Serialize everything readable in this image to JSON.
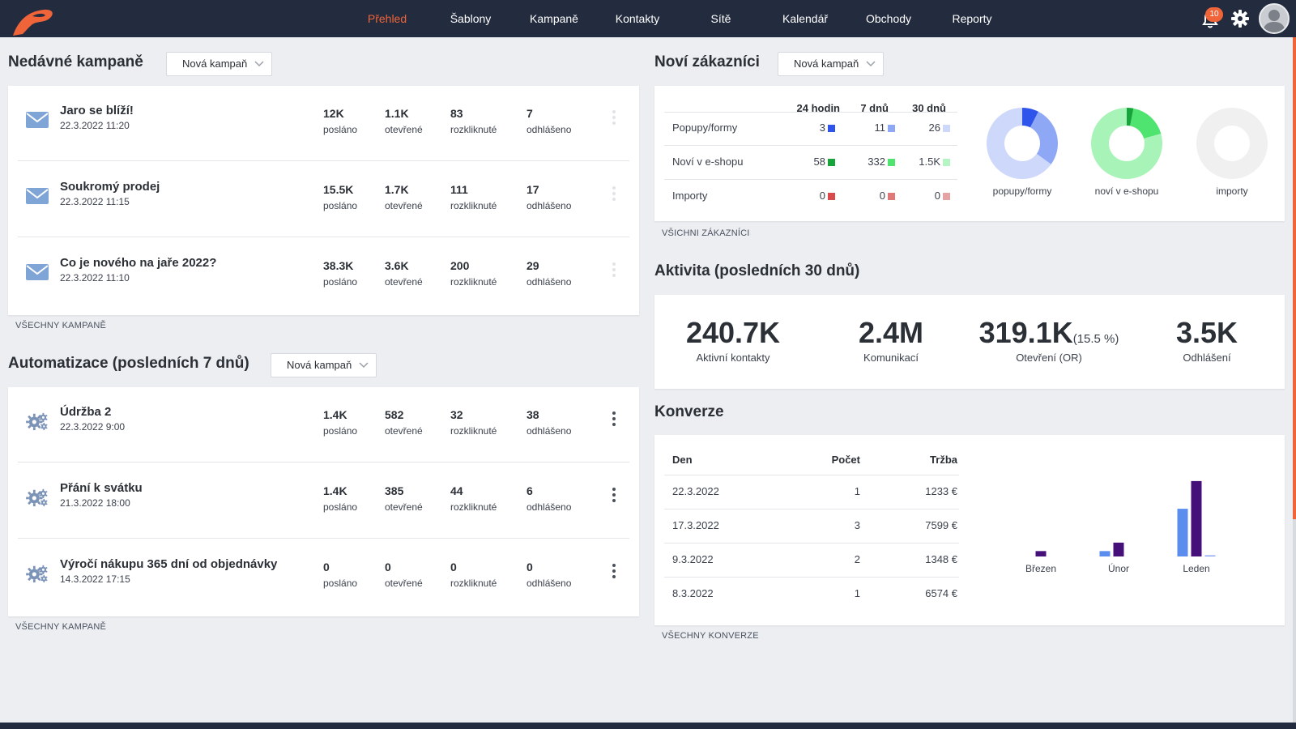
{
  "colors": {
    "accent": "#f0643a",
    "nav_bg": "#232b3e",
    "blue": "#5b8def",
    "purple": "#45107a"
  },
  "nav": {
    "items": [
      "Přehled",
      "Šablony",
      "Kampaně",
      "Kontakty",
      "Sítě",
      "Kalendář",
      "Obchody",
      "Reporty"
    ],
    "active": "Přehled",
    "notifications": "10"
  },
  "recent": {
    "title": "Nedávné kampaně",
    "dropdown": "Nová kampaň",
    "link": "VŠECHNY KAMPANĚ",
    "rows": [
      {
        "title": "Jaro se blíží!",
        "date": "22.3.2022 11:20",
        "sent": "12K",
        "opened": "1.1K",
        "clicked": "83",
        "unsub": "7"
      },
      {
        "title": "Soukromý prodej",
        "date": "22.3.2022 11:15",
        "sent": "15.5K",
        "opened": "1.7K",
        "clicked": "111",
        "unsub": "17"
      },
      {
        "title": "Co je nového na jaře 2022?",
        "date": "22.3.2022 11:10",
        "sent": "38.3K",
        "opened": "3.6K",
        "clicked": "200",
        "unsub": "29"
      }
    ]
  },
  "stat_labels": {
    "sent": "posláno",
    "opened": "otevřené",
    "clicked": "rozkliknuté",
    "unsub": "odhlášeno"
  },
  "automation": {
    "title": "Automatizace (posledních 7 dnů)",
    "dropdown": "Nová kampaň",
    "link": "VŠECHNY KAMPANĚ",
    "rows": [
      {
        "title": "Údržba 2",
        "date": "22.3.2022 9:00",
        "sent": "1.4K",
        "opened": "582",
        "clicked": "32",
        "unsub": "38"
      },
      {
        "title": "Přání k svátku",
        "date": "21.3.2022 18:00",
        "sent": "1.4K",
        "opened": "385",
        "clicked": "44",
        "unsub": "6"
      },
      {
        "title": "Výročí nákupu 365 dní od objednávky",
        "date": "14.3.2022 17:15",
        "sent": "0",
        "opened": "0",
        "clicked": "0",
        "unsub": "0"
      }
    ]
  },
  "customers": {
    "title": "Noví zákazníci",
    "dropdown": "Nová kampaň",
    "link": "VŠICHNI ZÁKAZNÍCI",
    "headers": [
      "24 hodin",
      "7 dnů",
      "30 dnů"
    ],
    "rows": [
      {
        "label": "Popupy/formy",
        "values": [
          "3",
          "11",
          "26"
        ],
        "colors": [
          "#2f54eb",
          "#8ea8f5",
          "#cdd8fb"
        ]
      },
      {
        "label": "Noví v e-shopu",
        "values": [
          "58",
          "332",
          "1.5K"
        ],
        "colors": [
          "#17a43a",
          "#4fe36f",
          "#b5f5c3"
        ]
      },
      {
        "label": "Importy",
        "values": [
          "0",
          "0",
          "0"
        ],
        "colors": [
          "#d94b4b",
          "#e07878",
          "#e6a3a3"
        ]
      }
    ],
    "donuts": [
      {
        "label": "popupy/formy",
        "segments": [
          26,
          11,
          3
        ],
        "colors": [
          "#cdd8fb",
          "#8ea8f5",
          "#2f54eb"
        ]
      },
      {
        "label": "noví v e-shopu",
        "segments": [
          1500,
          332,
          58
        ],
        "colors": [
          "#a8f4b8",
          "#4fe36f",
          "#17a43a"
        ]
      },
      {
        "label": "importy",
        "segments": [
          0,
          0,
          0
        ],
        "colors": [
          "#f0f0f0",
          "#f0f0f0",
          "#f0f0f0"
        ]
      }
    ]
  },
  "activity": {
    "title": "Aktivita (posledních 30 dnů)",
    "kpis": [
      {
        "value": "240.7K",
        "extra": "",
        "label": "Aktivní kontakty"
      },
      {
        "value": "2.4M",
        "extra": "",
        "label": "Komunikací"
      },
      {
        "value": "319.1K",
        "extra": "(15.5 %)",
        "label": "Otevření (OR)"
      },
      {
        "value": "3.5K",
        "extra": "",
        "label": "Odhlášení"
      }
    ]
  },
  "conversions": {
    "title": "Konverze",
    "link": "VŠECHNY KONVERZE",
    "headers": [
      "Den",
      "Počet",
      "Tržba"
    ],
    "rows": [
      [
        "22.3.2022",
        "1",
        "1233 €"
      ],
      [
        "17.3.2022",
        "3",
        "7599 €"
      ],
      [
        "9.3.2022",
        "2",
        "1348 €"
      ],
      [
        "8.3.2022",
        "1",
        "6574 €"
      ]
    ]
  },
  "chart_data": {
    "type": "bar",
    "categories": [
      "Březen",
      "Únor",
      "Leden"
    ],
    "series": [
      {
        "values": [
          0,
          0.7,
          6.2
        ],
        "color": "#5b8def"
      },
      {
        "values": [
          0.7,
          1.8,
          9.8
        ],
        "color": "#45107a"
      },
      {
        "values": [
          0,
          0,
          0.1
        ],
        "color": "#8ea8f5"
      }
    ],
    "ylim": [
      0,
      10
    ],
    "grid": false,
    "legend": "none"
  }
}
